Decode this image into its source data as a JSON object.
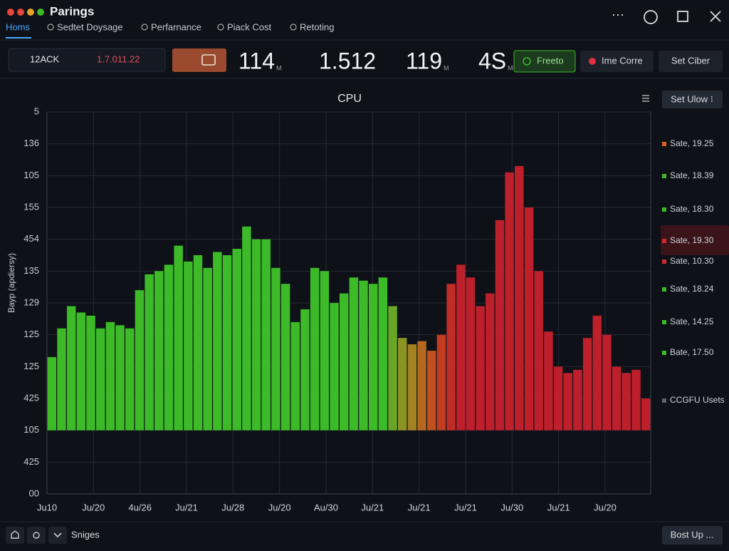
{
  "window": {
    "title": "Parings",
    "tabs": [
      "Homs",
      "Sedtet Doysage",
      "Perfarnance",
      "Piack Cost",
      "Retoting"
    ]
  },
  "toolbar": {
    "selector": "12ACK",
    "range": "1.7.011.22",
    "stats": [
      {
        "value": "114",
        "unit": "M"
      },
      {
        "value": "1.512"
      },
      {
        "value": "119",
        "unit": "M"
      },
      {
        "value": "4S",
        "unit": "M"
      }
    ],
    "buttons": [
      "Freeto",
      "Ime Corre",
      "Set Ciber"
    ]
  },
  "chart_data": {
    "type": "bar",
    "title": "CPU",
    "y_label": "Bayp (apdiersy)",
    "menu_button": "Set Ulow ⁝",
    "x_labels": [
      "Ju10",
      "Ju/20",
      "4u/26",
      "Ju/21",
      "Ju/28",
      "Ju/20",
      "Au/30",
      "Ju/21",
      "Ju/21",
      "Ju/21",
      "Ju/30",
      "Ju/21",
      "Ju/20"
    ],
    "ylim": [
      0,
      12
    ],
    "yticks": [
      {
        "value": 0,
        "label": "00"
      },
      {
        "value": 1,
        "label": "425"
      },
      {
        "value": 2,
        "label": "105"
      },
      {
        "value": 3,
        "label": "425"
      },
      {
        "value": 4,
        "label": "125"
      },
      {
        "value": 5,
        "label": "125"
      },
      {
        "value": 6,
        "label": "129"
      },
      {
        "value": 7,
        "label": "135"
      },
      {
        "value": 8,
        "label": "454"
      },
      {
        "value": 9,
        "label": "155"
      },
      {
        "value": 10,
        "label": "105"
      },
      {
        "value": 11,
        "label": "136"
      },
      {
        "value": 12,
        "label": "5"
      }
    ],
    "baseline": 2,
    "grid": true,
    "values": [
      4.3,
      5.2,
      5.9,
      5.7,
      5.6,
      5.2,
      5.4,
      5.3,
      5.2,
      6.4,
      6.9,
      7.0,
      7.2,
      7.8,
      7.3,
      7.5,
      7.1,
      7.6,
      7.5,
      7.7,
      8.4,
      8.0,
      8.0,
      7.1,
      6.6,
      5.4,
      5.8,
      7.1,
      7.0,
      6.0,
      6.3,
      6.8,
      6.7,
      6.6,
      6.8,
      5.9,
      4.9,
      4.7,
      4.8,
      4.5,
      5.0,
      6.6,
      7.2,
      6.8,
      5.9,
      6.3,
      8.6,
      10.1,
      10.3,
      9.0,
      7.0,
      5.1,
      4.0,
      3.8,
      3.9,
      4.9,
      5.6,
      5.0,
      4.0,
      3.8,
      3.9,
      3.0
    ],
    "colors": [
      "#3cba28",
      "#3cba28",
      "#3cba28",
      "#3cba28",
      "#3cba28",
      "#3cba28",
      "#3cba28",
      "#3cba28",
      "#3cba28",
      "#3cba28",
      "#3cba28",
      "#3cba28",
      "#3cba28",
      "#3cba28",
      "#3cba28",
      "#3cba28",
      "#3cba28",
      "#3cba28",
      "#3cba28",
      "#3cba28",
      "#3cba28",
      "#3cba28",
      "#3cba28",
      "#3cba28",
      "#3cba28",
      "#3cba28",
      "#3cba28",
      "#3cba28",
      "#3cba28",
      "#3cba28",
      "#3cba28",
      "#3cba28",
      "#3cba28",
      "#3cba28",
      "#3cba28",
      "#6aa626",
      "#8c9522",
      "#a4821f",
      "#b4681f",
      "#c0501f",
      "#c23c22",
      "#c02c26",
      "#bd1f2b",
      "#bd1f2b",
      "#bd1f2b",
      "#bd1f2b",
      "#bd1f2b",
      "#bd1f2b",
      "#bd1f2b",
      "#bd1f2b",
      "#bd1f2b",
      "#bd1f2b",
      "#bd1f2b",
      "#bd1f2b",
      "#bd1f2b",
      "#bd1f2b",
      "#bd1f2b",
      "#bd1f2b",
      "#bd1f2b",
      "#bd1f2b",
      "#bd1f2b",
      "#bd1f2b"
    ],
    "legend": [
      {
        "label": "Sate, 19.25",
        "color": "#e0601c"
      },
      {
        "label": "Sate, 18.39",
        "color": "#3cba28"
      },
      {
        "label": "Sate, 18.30",
        "color": "#3cba28"
      },
      {
        "label": "Sate, 19.30",
        "color": "#d02a30"
      },
      {
        "label": "Sate, 10.30",
        "color": "#d02a30"
      },
      {
        "label": "Sate, 18.24",
        "color": "#3cba28"
      },
      {
        "label": "Sate, 14.25",
        "color": "#3cba28"
      },
      {
        "label": "Bate, 17.50",
        "color": "#3cba28"
      },
      {
        "label": "CCGFU Usets",
        "color": "#5a6470"
      }
    ]
  },
  "footer": {
    "label": "Sniges",
    "button": "Bost Up ..."
  }
}
